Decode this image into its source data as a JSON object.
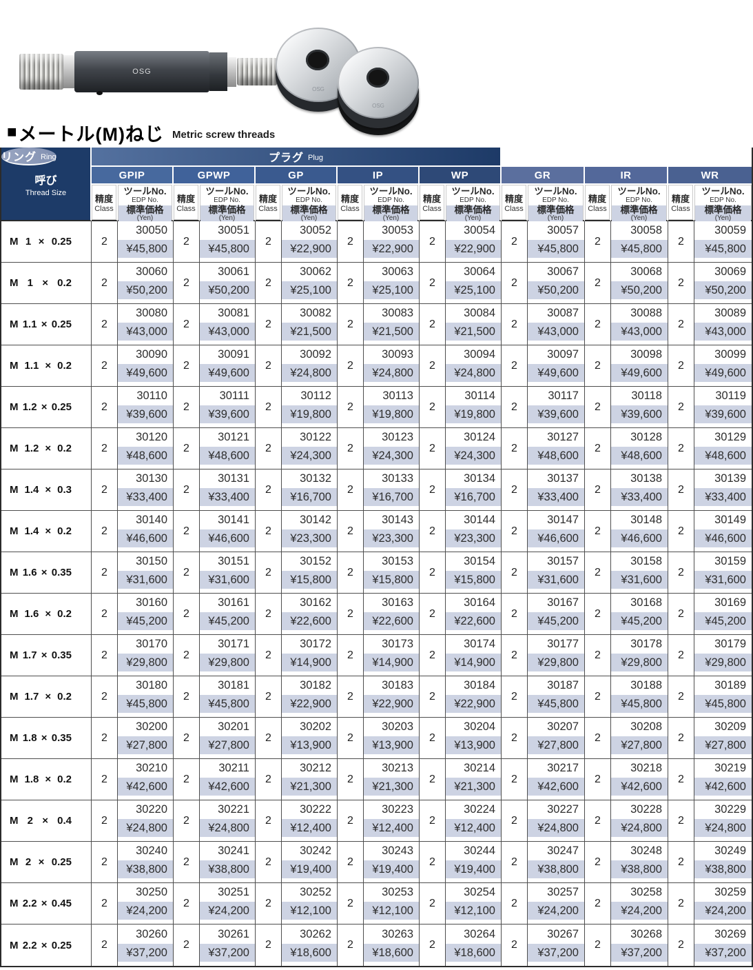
{
  "title": {
    "bullet": "■",
    "jp": "メートル(M)ねじ",
    "en": "Metric screw threads"
  },
  "images": {
    "plug_mark": "OSG",
    "ring_mark": "OSG"
  },
  "header": {
    "thread": {
      "jp": "呼び",
      "en": "Thread Size"
    },
    "bands": [
      {
        "jp": "プラグ",
        "en": "Plug"
      },
      {
        "jp": "リング",
        "en": "Ring"
      }
    ],
    "groups": [
      "GPIP",
      "GPWP",
      "GP",
      "IP",
      "WP",
      "GR",
      "IR",
      "WR"
    ],
    "sub": {
      "class_jp": "精度",
      "class_en": "Class",
      "tool_jp": "ツールNo.",
      "tool_en": "EDP No.",
      "price_jp": "標準価格",
      "price_en": "(Yen)"
    }
  },
  "colors": {
    "navy": "#1d3b68",
    "plug_band_from": "#54719f",
    "plug_band_to": "#1d3a67",
    "ring_band_from": "#9aa6c2",
    "ring_band_to": "#8190b1",
    "group_colors": [
      "#47699e",
      "#40629a",
      "#3a5a8f",
      "#345183",
      "#2e4977",
      "#5b6f9e",
      "#53689a",
      "#4a6191"
    ],
    "price_bg": "#cdd3e3"
  },
  "rows": [
    {
      "size": [
        "M",
        "1",
        "×",
        "0.25"
      ],
      "cells": [
        [
          "2",
          "30050",
          "¥45,800"
        ],
        [
          "2",
          "30051",
          "¥45,800"
        ],
        [
          "2",
          "30052",
          "¥22,900"
        ],
        [
          "2",
          "30053",
          "¥22,900"
        ],
        [
          "2",
          "30054",
          "¥22,900"
        ],
        [
          "2",
          "30057",
          "¥45,800"
        ],
        [
          "2",
          "30058",
          "¥45,800"
        ],
        [
          "2",
          "30059",
          "¥45,800"
        ]
      ]
    },
    {
      "size": [
        "M",
        "1",
        "×",
        "0.2"
      ],
      "cells": [
        [
          "2",
          "30060",
          "¥50,200"
        ],
        [
          "2",
          "30061",
          "¥50,200"
        ],
        [
          "2",
          "30062",
          "¥25,100"
        ],
        [
          "2",
          "30063",
          "¥25,100"
        ],
        [
          "2",
          "30064",
          "¥25,100"
        ],
        [
          "2",
          "30067",
          "¥50,200"
        ],
        [
          "2",
          "30068",
          "¥50,200"
        ],
        [
          "2",
          "30069",
          "¥50,200"
        ]
      ]
    },
    {
      "size": [
        "M",
        "1.1",
        "×",
        "0.25"
      ],
      "cells": [
        [
          "2",
          "30080",
          "¥43,000"
        ],
        [
          "2",
          "30081",
          "¥43,000"
        ],
        [
          "2",
          "30082",
          "¥21,500"
        ],
        [
          "2",
          "30083",
          "¥21,500"
        ],
        [
          "2",
          "30084",
          "¥21,500"
        ],
        [
          "2",
          "30087",
          "¥43,000"
        ],
        [
          "2",
          "30088",
          "¥43,000"
        ],
        [
          "2",
          "30089",
          "¥43,000"
        ]
      ]
    },
    {
      "size": [
        "M",
        "1.1",
        "×",
        "0.2"
      ],
      "cells": [
        [
          "2",
          "30090",
          "¥49,600"
        ],
        [
          "2",
          "30091",
          "¥49,600"
        ],
        [
          "2",
          "30092",
          "¥24,800"
        ],
        [
          "2",
          "30093",
          "¥24,800"
        ],
        [
          "2",
          "30094",
          "¥24,800"
        ],
        [
          "2",
          "30097",
          "¥49,600"
        ],
        [
          "2",
          "30098",
          "¥49,600"
        ],
        [
          "2",
          "30099",
          "¥49,600"
        ]
      ]
    },
    {
      "size": [
        "M",
        "1.2",
        "×",
        "0.25"
      ],
      "cells": [
        [
          "2",
          "30110",
          "¥39,600"
        ],
        [
          "2",
          "30111",
          "¥39,600"
        ],
        [
          "2",
          "30112",
          "¥19,800"
        ],
        [
          "2",
          "30113",
          "¥19,800"
        ],
        [
          "2",
          "30114",
          "¥19,800"
        ],
        [
          "2",
          "30117",
          "¥39,600"
        ],
        [
          "2",
          "30118",
          "¥39,600"
        ],
        [
          "2",
          "30119",
          "¥39,600"
        ]
      ]
    },
    {
      "size": [
        "M",
        "1.2",
        "×",
        "0.2"
      ],
      "cells": [
        [
          "2",
          "30120",
          "¥48,600"
        ],
        [
          "2",
          "30121",
          "¥48,600"
        ],
        [
          "2",
          "30122",
          "¥24,300"
        ],
        [
          "2",
          "30123",
          "¥24,300"
        ],
        [
          "2",
          "30124",
          "¥24,300"
        ],
        [
          "2",
          "30127",
          "¥48,600"
        ],
        [
          "2",
          "30128",
          "¥48,600"
        ],
        [
          "2",
          "30129",
          "¥48,600"
        ]
      ]
    },
    {
      "size": [
        "M",
        "1.4",
        "×",
        "0.3"
      ],
      "cells": [
        [
          "2",
          "30130",
          "¥33,400"
        ],
        [
          "2",
          "30131",
          "¥33,400"
        ],
        [
          "2",
          "30132",
          "¥16,700"
        ],
        [
          "2",
          "30133",
          "¥16,700"
        ],
        [
          "2",
          "30134",
          "¥16,700"
        ],
        [
          "2",
          "30137",
          "¥33,400"
        ],
        [
          "2",
          "30138",
          "¥33,400"
        ],
        [
          "2",
          "30139",
          "¥33,400"
        ]
      ]
    },
    {
      "size": [
        "M",
        "1.4",
        "×",
        "0.2"
      ],
      "cells": [
        [
          "2",
          "30140",
          "¥46,600"
        ],
        [
          "2",
          "30141",
          "¥46,600"
        ],
        [
          "2",
          "30142",
          "¥23,300"
        ],
        [
          "2",
          "30143",
          "¥23,300"
        ],
        [
          "2",
          "30144",
          "¥23,300"
        ],
        [
          "2",
          "30147",
          "¥46,600"
        ],
        [
          "2",
          "30148",
          "¥46,600"
        ],
        [
          "2",
          "30149",
          "¥46,600"
        ]
      ]
    },
    {
      "size": [
        "M",
        "1.6",
        "×",
        "0.35"
      ],
      "cells": [
        [
          "2",
          "30150",
          "¥31,600"
        ],
        [
          "2",
          "30151",
          "¥31,600"
        ],
        [
          "2",
          "30152",
          "¥15,800"
        ],
        [
          "2",
          "30153",
          "¥15,800"
        ],
        [
          "2",
          "30154",
          "¥15,800"
        ],
        [
          "2",
          "30157",
          "¥31,600"
        ],
        [
          "2",
          "30158",
          "¥31,600"
        ],
        [
          "2",
          "30159",
          "¥31,600"
        ]
      ]
    },
    {
      "size": [
        "M",
        "1.6",
        "×",
        "0.2"
      ],
      "cells": [
        [
          "2",
          "30160",
          "¥45,200"
        ],
        [
          "2",
          "30161",
          "¥45,200"
        ],
        [
          "2",
          "30162",
          "¥22,600"
        ],
        [
          "2",
          "30163",
          "¥22,600"
        ],
        [
          "2",
          "30164",
          "¥22,600"
        ],
        [
          "2",
          "30167",
          "¥45,200"
        ],
        [
          "2",
          "30168",
          "¥45,200"
        ],
        [
          "2",
          "30169",
          "¥45,200"
        ]
      ]
    },
    {
      "size": [
        "M",
        "1.7",
        "×",
        "0.35"
      ],
      "cells": [
        [
          "2",
          "30170",
          "¥29,800"
        ],
        [
          "2",
          "30171",
          "¥29,800"
        ],
        [
          "2",
          "30172",
          "¥14,900"
        ],
        [
          "2",
          "30173",
          "¥14,900"
        ],
        [
          "2",
          "30174",
          "¥14,900"
        ],
        [
          "2",
          "30177",
          "¥29,800"
        ],
        [
          "2",
          "30178",
          "¥29,800"
        ],
        [
          "2",
          "30179",
          "¥29,800"
        ]
      ]
    },
    {
      "size": [
        "M",
        "1.7",
        "×",
        "0.2"
      ],
      "cells": [
        [
          "2",
          "30180",
          "¥45,800"
        ],
        [
          "2",
          "30181",
          "¥45,800"
        ],
        [
          "2",
          "30182",
          "¥22,900"
        ],
        [
          "2",
          "30183",
          "¥22,900"
        ],
        [
          "2",
          "30184",
          "¥22,900"
        ],
        [
          "2",
          "30187",
          "¥45,800"
        ],
        [
          "2",
          "30188",
          "¥45,800"
        ],
        [
          "2",
          "30189",
          "¥45,800"
        ]
      ]
    },
    {
      "size": [
        "M",
        "1.8",
        "×",
        "0.35"
      ],
      "cells": [
        [
          "2",
          "30200",
          "¥27,800"
        ],
        [
          "2",
          "30201",
          "¥27,800"
        ],
        [
          "2",
          "30202",
          "¥13,900"
        ],
        [
          "2",
          "30203",
          "¥13,900"
        ],
        [
          "2",
          "30204",
          "¥13,900"
        ],
        [
          "2",
          "30207",
          "¥27,800"
        ],
        [
          "2",
          "30208",
          "¥27,800"
        ],
        [
          "2",
          "30209",
          "¥27,800"
        ]
      ]
    },
    {
      "size": [
        "M",
        "1.8",
        "×",
        "0.2"
      ],
      "cells": [
        [
          "2",
          "30210",
          "¥42,600"
        ],
        [
          "2",
          "30211",
          "¥42,600"
        ],
        [
          "2",
          "30212",
          "¥21,300"
        ],
        [
          "2",
          "30213",
          "¥21,300"
        ],
        [
          "2",
          "30214",
          "¥21,300"
        ],
        [
          "2",
          "30217",
          "¥42,600"
        ],
        [
          "2",
          "30218",
          "¥42,600"
        ],
        [
          "2",
          "30219",
          "¥42,600"
        ]
      ]
    },
    {
      "size": [
        "M",
        "2",
        "×",
        "0.4"
      ],
      "cells": [
        [
          "2",
          "30220",
          "¥24,800"
        ],
        [
          "2",
          "30221",
          "¥24,800"
        ],
        [
          "2",
          "30222",
          "¥12,400"
        ],
        [
          "2",
          "30223",
          "¥12,400"
        ],
        [
          "2",
          "30224",
          "¥12,400"
        ],
        [
          "2",
          "30227",
          "¥24,800"
        ],
        [
          "2",
          "30228",
          "¥24,800"
        ],
        [
          "2",
          "30229",
          "¥24,800"
        ]
      ]
    },
    {
      "size": [
        "M",
        "2",
        "×",
        "0.25"
      ],
      "cells": [
        [
          "2",
          "30240",
          "¥38,800"
        ],
        [
          "2",
          "30241",
          "¥38,800"
        ],
        [
          "2",
          "30242",
          "¥19,400"
        ],
        [
          "2",
          "30243",
          "¥19,400"
        ],
        [
          "2",
          "30244",
          "¥19,400"
        ],
        [
          "2",
          "30247",
          "¥38,800"
        ],
        [
          "2",
          "30248",
          "¥38,800"
        ],
        [
          "2",
          "30249",
          "¥38,800"
        ]
      ]
    },
    {
      "size": [
        "M",
        "2.2",
        "×",
        "0.45"
      ],
      "cells": [
        [
          "2",
          "30250",
          "¥24,200"
        ],
        [
          "2",
          "30251",
          "¥24,200"
        ],
        [
          "2",
          "30252",
          "¥12,100"
        ],
        [
          "2",
          "30253",
          "¥12,100"
        ],
        [
          "2",
          "30254",
          "¥12,100"
        ],
        [
          "2",
          "30257",
          "¥24,200"
        ],
        [
          "2",
          "30258",
          "¥24,200"
        ],
        [
          "2",
          "30259",
          "¥24,200"
        ]
      ]
    },
    {
      "size": [
        "M",
        "2.2",
        "×",
        "0.25"
      ],
      "cells": [
        [
          "2",
          "30260",
          "¥37,200"
        ],
        [
          "2",
          "30261",
          "¥37,200"
        ],
        [
          "2",
          "30262",
          "¥18,600"
        ],
        [
          "2",
          "30263",
          "¥18,600"
        ],
        [
          "2",
          "30264",
          "¥18,600"
        ],
        [
          "2",
          "30267",
          "¥37,200"
        ],
        [
          "2",
          "30268",
          "¥37,200"
        ],
        [
          "2",
          "30269",
          "¥37,200"
        ]
      ]
    }
  ]
}
